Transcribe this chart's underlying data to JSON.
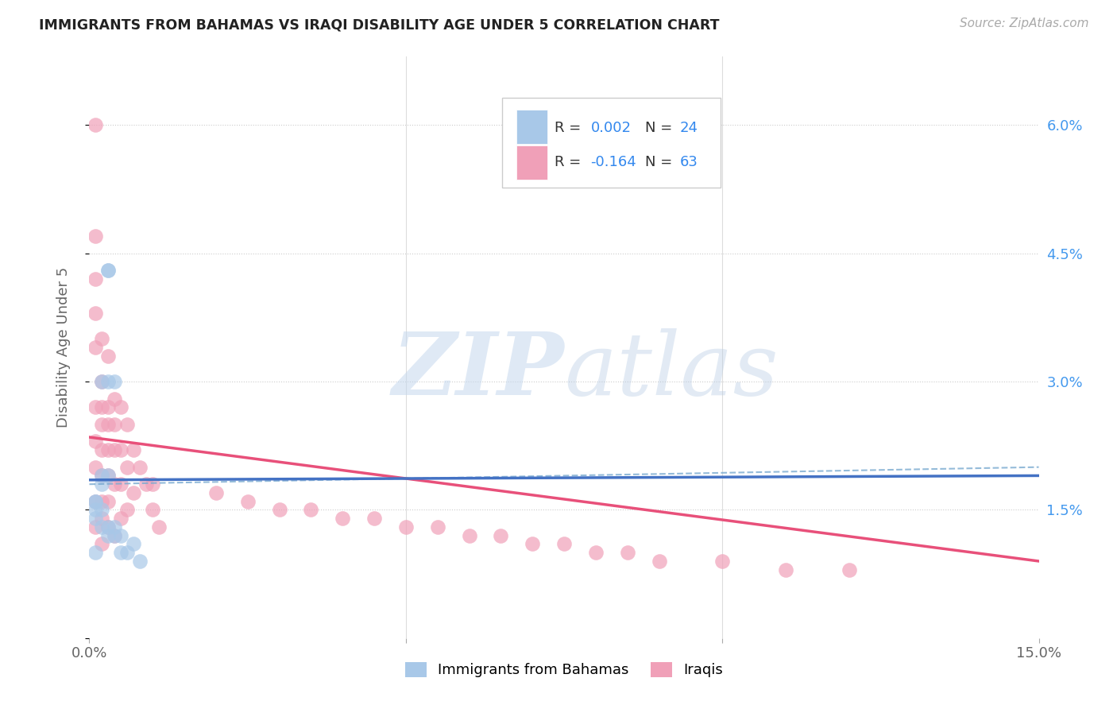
{
  "title": "IMMIGRANTS FROM BAHAMAS VS IRAQI DISABILITY AGE UNDER 5 CORRELATION CHART",
  "source": "Source: ZipAtlas.com",
  "ylabel": "Disability Age Under 5",
  "legend_bahamas_R": "0.002",
  "legend_bahamas_N": "24",
  "legend_iraqis_R": "-0.164",
  "legend_iraqis_N": "63",
  "color_bahamas": "#a8c8e8",
  "color_iraqis": "#f0a0b8",
  "color_bahamas_line": "#4472c4",
  "color_iraqis_line": "#e8507a",
  "color_dashed": "#7aaad0",
  "xlim": [
    0.0,
    0.15
  ],
  "ylim": [
    0.0,
    0.065
  ],
  "bahamas_x": [
    0.001,
    0.001,
    0.001,
    0.001,
    0.001,
    0.002,
    0.002,
    0.002,
    0.002,
    0.002,
    0.003,
    0.003,
    0.003,
    0.003,
    0.003,
    0.003,
    0.004,
    0.004,
    0.004,
    0.005,
    0.005,
    0.006,
    0.007,
    0.008
  ],
  "bahamas_y": [
    0.016,
    0.016,
    0.015,
    0.014,
    0.01,
    0.03,
    0.019,
    0.018,
    0.015,
    0.013,
    0.043,
    0.043,
    0.03,
    0.019,
    0.013,
    0.012,
    0.03,
    0.013,
    0.012,
    0.012,
    0.01,
    0.01,
    0.011,
    0.009
  ],
  "iraqis_x": [
    0.001,
    0.001,
    0.001,
    0.001,
    0.001,
    0.001,
    0.001,
    0.001,
    0.001,
    0.001,
    0.002,
    0.002,
    0.002,
    0.002,
    0.002,
    0.002,
    0.002,
    0.002,
    0.002,
    0.003,
    0.003,
    0.003,
    0.003,
    0.003,
    0.003,
    0.003,
    0.004,
    0.004,
    0.004,
    0.004,
    0.004,
    0.005,
    0.005,
    0.005,
    0.005,
    0.006,
    0.006,
    0.006,
    0.007,
    0.007,
    0.008,
    0.009,
    0.01,
    0.01,
    0.011,
    0.02,
    0.025,
    0.03,
    0.035,
    0.04,
    0.045,
    0.05,
    0.055,
    0.06,
    0.065,
    0.07,
    0.075,
    0.08,
    0.085,
    0.09,
    0.1,
    0.11,
    0.12
  ],
  "iraqis_y": [
    0.06,
    0.047,
    0.042,
    0.038,
    0.034,
    0.027,
    0.023,
    0.02,
    0.016,
    0.013,
    0.035,
    0.03,
    0.027,
    0.025,
    0.022,
    0.019,
    0.016,
    0.014,
    0.011,
    0.033,
    0.027,
    0.025,
    0.022,
    0.019,
    0.016,
    0.013,
    0.028,
    0.025,
    0.022,
    0.018,
    0.012,
    0.027,
    0.022,
    0.018,
    0.014,
    0.025,
    0.02,
    0.015,
    0.022,
    0.017,
    0.02,
    0.018,
    0.018,
    0.015,
    0.013,
    0.017,
    0.016,
    0.015,
    0.015,
    0.014,
    0.014,
    0.013,
    0.013,
    0.012,
    0.012,
    0.011,
    0.011,
    0.01,
    0.01,
    0.009,
    0.009,
    0.008,
    0.008
  ],
  "bahamas_trend_x": [
    0.0,
    0.15
  ],
  "bahamas_trend_y": [
    0.0185,
    0.019
  ],
  "iraqis_trend_x": [
    0.0,
    0.15
  ],
  "iraqis_trend_y": [
    0.0235,
    0.009
  ],
  "dashed_trend_x": [
    0.0,
    0.15
  ],
  "dashed_trend_y": [
    0.018,
    0.02
  ]
}
